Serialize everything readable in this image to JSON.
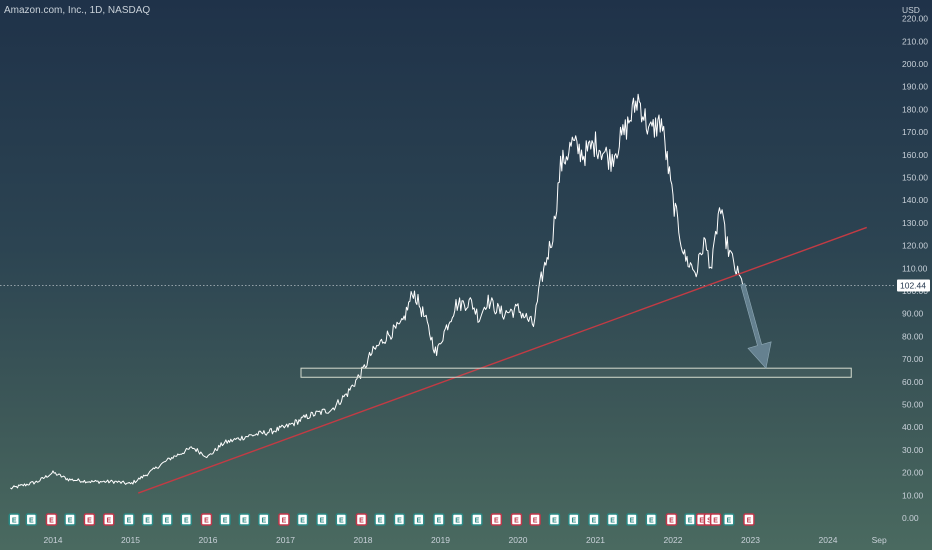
{
  "header": {
    "symbol_title": "Amazon.com, Inc., 1D, NASDAQ"
  },
  "chart_data": {
    "type": "line",
    "title": "Amazon.com, Inc., 1D, NASDAQ",
    "currency": "USD",
    "y_ticks": [
      "0.00",
      "10.00",
      "20.00",
      "30.00",
      "40.00",
      "50.00",
      "60.00",
      "70.00",
      "80.00",
      "90.00",
      "100.00",
      "110.00",
      "120.00",
      "130.00",
      "140.00",
      "150.00",
      "160.00",
      "170.00",
      "180.00",
      "190.00",
      "200.00",
      "210.00",
      "220.00"
    ],
    "x_ticks": [
      "2014",
      "2015",
      "2016",
      "2017",
      "2018",
      "2019",
      "2020",
      "2021",
      "2022",
      "2023",
      "2024",
      "Sep"
    ],
    "ylim": [
      0,
      225
    ],
    "grid": false,
    "last_price": "102.44",
    "series": [
      {
        "x": [
          2013.45,
          2013.8,
          2014.0,
          2014.2,
          2014.5,
          2014.8,
          2015.0,
          2015.2,
          2015.5,
          2015.8,
          2016.0,
          2016.2,
          2016.5,
          2016.8,
          2017.0,
          2017.3,
          2017.6,
          2017.8,
          2018.0,
          2018.1,
          2018.3,
          2018.5,
          2018.65,
          2018.8,
          2018.95,
          2019.0,
          2019.2,
          2019.4,
          2019.5,
          2019.6,
          2019.8,
          2020.0,
          2020.2,
          2020.3,
          2020.45,
          2020.55,
          2020.7,
          2020.85,
          2021.0,
          2021.2,
          2021.4,
          2021.55,
          2021.7,
          2021.85,
          2022.0,
          2022.15,
          2022.3,
          2022.4,
          2022.5,
          2022.6,
          2022.7,
          2022.8,
          2022.9
        ],
        "values": [
          13,
          16,
          20,
          17,
          16,
          16,
          15,
          19,
          26,
          31,
          27,
          33,
          36,
          38,
          40,
          45,
          48,
          55,
          65,
          72,
          80,
          85,
          100,
          88,
          72,
          78,
          94,
          95,
          88,
          96,
          90,
          92,
          85,
          105,
          125,
          155,
          165,
          160,
          165,
          158,
          172,
          185,
          170,
          175,
          140,
          115,
          108,
          122,
          110,
          137,
          120,
          110,
          102.44
        ]
      }
    ],
    "trendline": {
      "x": [
        2015.1,
        2024.5
      ],
      "values": [
        11,
        128
      ]
    },
    "support_zone": {
      "x": [
        2017.2,
        2024.3
      ],
      "values": [
        62,
        66
      ]
    },
    "projection_arrow": {
      "x": [
        2022.9,
        2023.2
      ],
      "values": [
        103,
        66
      ]
    },
    "earnings_markers": {
      "x": [
        2013.5,
        2013.72,
        2013.98,
        2014.22,
        2014.47,
        2014.72,
        2014.98,
        2015.22,
        2015.47,
        2015.72,
        2015.98,
        2016.22,
        2016.47,
        2016.72,
        2016.98,
        2017.22,
        2017.47,
        2017.72,
        2017.98,
        2018.22,
        2018.47,
        2018.72,
        2018.98,
        2019.22,
        2019.47,
        2019.72,
        2019.98,
        2020.22,
        2020.47,
        2020.72,
        2020.98,
        2021.22,
        2021.47,
        2021.72,
        2021.98,
        2022.22,
        2022.37,
        2022.47,
        2022.55,
        2022.72,
        2022.98
      ],
      "labels": [
        "E",
        "E",
        "E",
        "E",
        "E",
        "E",
        "E",
        "E",
        "E",
        "E",
        "E",
        "E",
        "E",
        "E",
        "E",
        "E",
        "E",
        "E",
        "E",
        "E",
        "E",
        "E",
        "E",
        "E",
        "E",
        "E",
        "E",
        "E",
        "E",
        "E",
        "E",
        "E",
        "E",
        "E",
        "E",
        "E",
        "E",
        "S",
        "E",
        "E",
        "E"
      ],
      "styles": [
        "teal",
        "teal",
        "red",
        "teal",
        "red",
        "red",
        "teal",
        "teal",
        "teal",
        "teal",
        "red",
        "teal",
        "teal",
        "teal",
        "red",
        "teal",
        "teal",
        "teal",
        "red",
        "teal",
        "teal",
        "teal",
        "teal",
        "teal",
        "teal",
        "red",
        "red",
        "red",
        "teal",
        "teal",
        "teal",
        "teal",
        "teal",
        "teal",
        "red",
        "teal",
        "red",
        "red",
        "red",
        "teal",
        "red"
      ]
    },
    "colors": {
      "price": "#ffffff",
      "trendline": "#c23b44",
      "zone": "#d5dccf",
      "arrow": "#6d8a9a",
      "earn_teal": "#2a8a86",
      "earn_red": "#c2364a"
    }
  }
}
